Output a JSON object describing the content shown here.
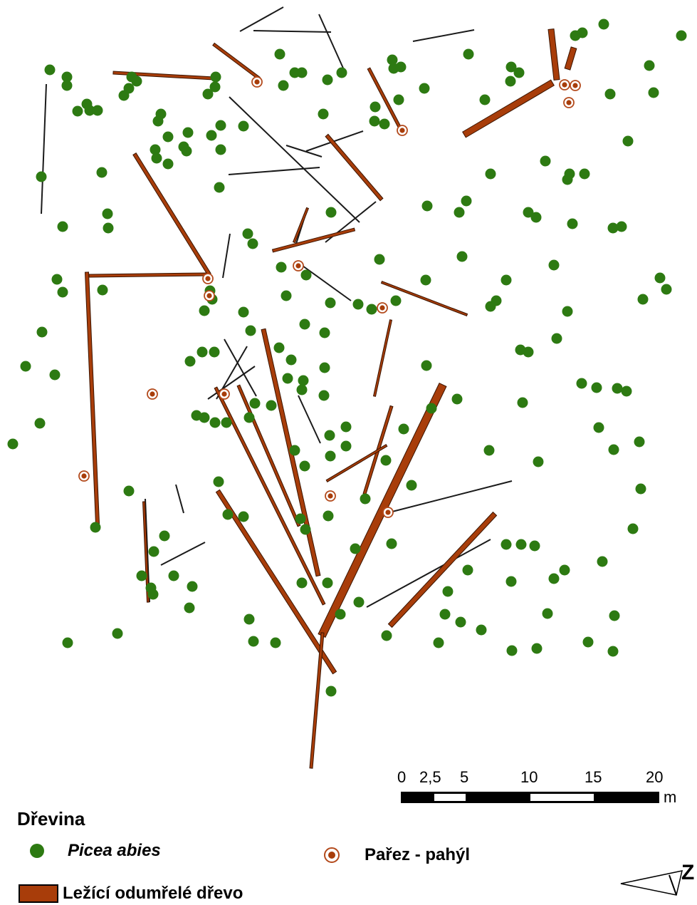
{
  "legend": {
    "title": "Dřevina",
    "tree_label": "Picea abies",
    "stump_label": "Pařez - pahýl",
    "deadwood_label": "Ležící odumřelé dřevo"
  },
  "scalebar": {
    "ticks": [
      "0",
      "2,5",
      "5",
      "10",
      "15",
      "20"
    ],
    "unit": "m"
  },
  "colors": {
    "tree": "#2d7a12",
    "deadwood_fill": "#a83d0a",
    "deadwood_stroke": "#3a1400",
    "stump_ring": "#b34a1c",
    "thin_log": "#1a1a1a"
  },
  "north_arrow_letter": "Z"
}
